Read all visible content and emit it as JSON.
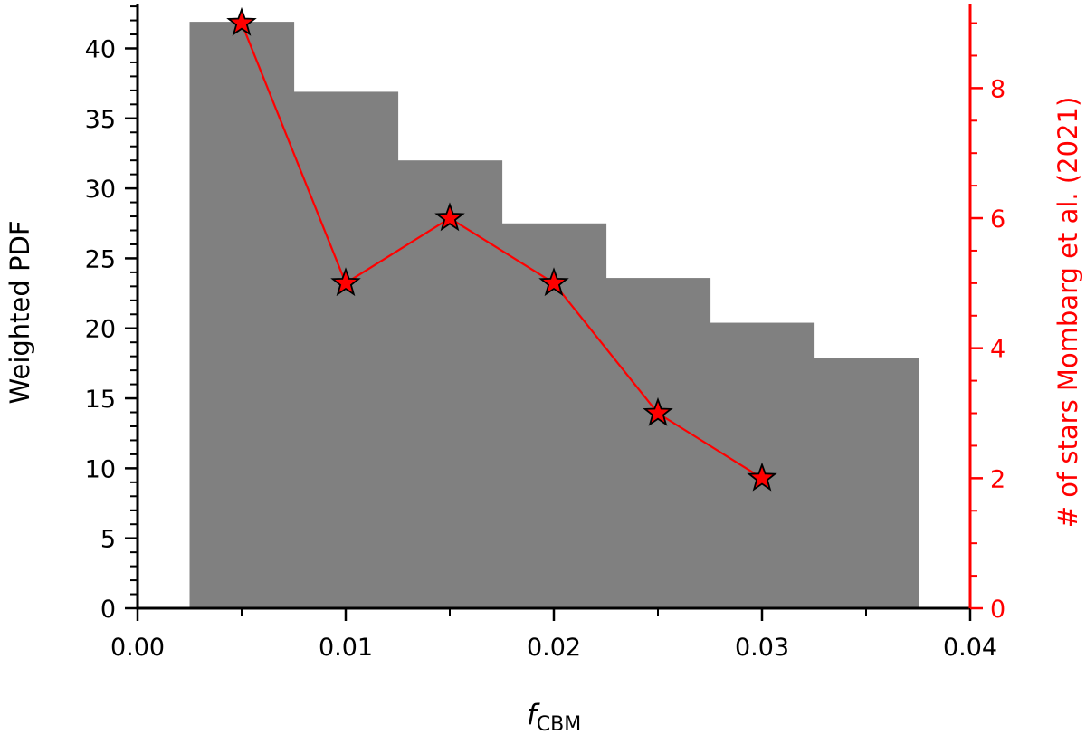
{
  "chart_data": {
    "type": "bar",
    "bars": {
      "bin_edges": [
        0.0025,
        0.0075,
        0.0125,
        0.0175,
        0.0225,
        0.0275,
        0.0325,
        0.0375
      ],
      "values": [
        41.9,
        36.9,
        32.0,
        27.5,
        23.6,
        20.4,
        17.9
      ],
      "color": "#808080"
    },
    "line_series": {
      "x": [
        0.005,
        0.01,
        0.015,
        0.02,
        0.025,
        0.03
      ],
      "y": [
        9,
        5,
        6,
        5,
        3,
        2
      ],
      "color": "#ff0000",
      "marker": "star",
      "marker_fill": "#ff0000",
      "marker_edge": "#000000"
    },
    "xlabel_main": "f",
    "xlabel_sub": "CBM",
    "ylabel_left": "Weighted PDF",
    "ylabel_right": "# of stars Mombarg et al. (2021)",
    "xlim": [
      0.0,
      0.04
    ],
    "ylim_left": [
      0,
      43.2
    ],
    "ylim_right": [
      0,
      9.3
    ],
    "xticks": [
      0.0,
      0.01,
      0.02,
      0.03,
      0.04
    ],
    "xtick_labels": [
      "0.00",
      "0.01",
      "0.02",
      "0.03",
      "0.04"
    ],
    "yticks_left": [
      0,
      5,
      10,
      15,
      20,
      25,
      30,
      35,
      40
    ],
    "ytick_labels_left": [
      "0",
      "5",
      "10",
      "15",
      "20",
      "25",
      "30",
      "35",
      "40"
    ],
    "yticks_right": [
      0,
      2,
      4,
      6,
      8
    ],
    "ytick_labels_right": [
      "0",
      "2",
      "4",
      "6",
      "8"
    ],
    "right_axis_color": "#ff0000",
    "grid": false
  }
}
